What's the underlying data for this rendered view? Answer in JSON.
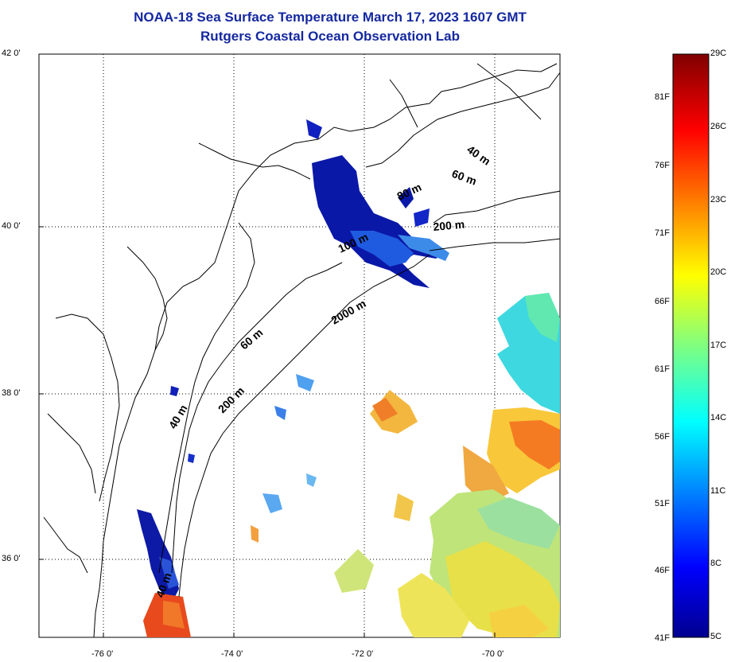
{
  "title": {
    "line1": "NOAA-18 Sea Surface Temperature March 17, 2023 1607 GMT",
    "line2": "Rutgers Coastal Ocean Observation Lab"
  },
  "axes": {
    "y_ticks": [
      "42 0'",
      "40 0'",
      "38 0'",
      "36 0'"
    ],
    "x_ticks": [
      "-76 0'",
      "-74 0'",
      "-72 0'",
      "-70 0'"
    ]
  },
  "contour_labels": [
    "40 m",
    "60 m",
    "80 m",
    "200 m",
    "100 m",
    "2000 m",
    "60 m",
    "200 m",
    "40 m",
    "40 m"
  ],
  "colorbar": {
    "fahrenheit": [
      "81F",
      "76F",
      "71F",
      "66F",
      "61F",
      "56F",
      "51F",
      "46F",
      "41F"
    ],
    "celsius": [
      "29C",
      "26C",
      "23C",
      "20C",
      "17C",
      "14C",
      "11C",
      "8C",
      "5C"
    ],
    "colors": [
      "#00008f",
      "#0000ff",
      "#0080ff",
      "#00ffff",
      "#80ff80",
      "#ffff00",
      "#ff8000",
      "#ff0000",
      "#800000"
    ]
  }
}
